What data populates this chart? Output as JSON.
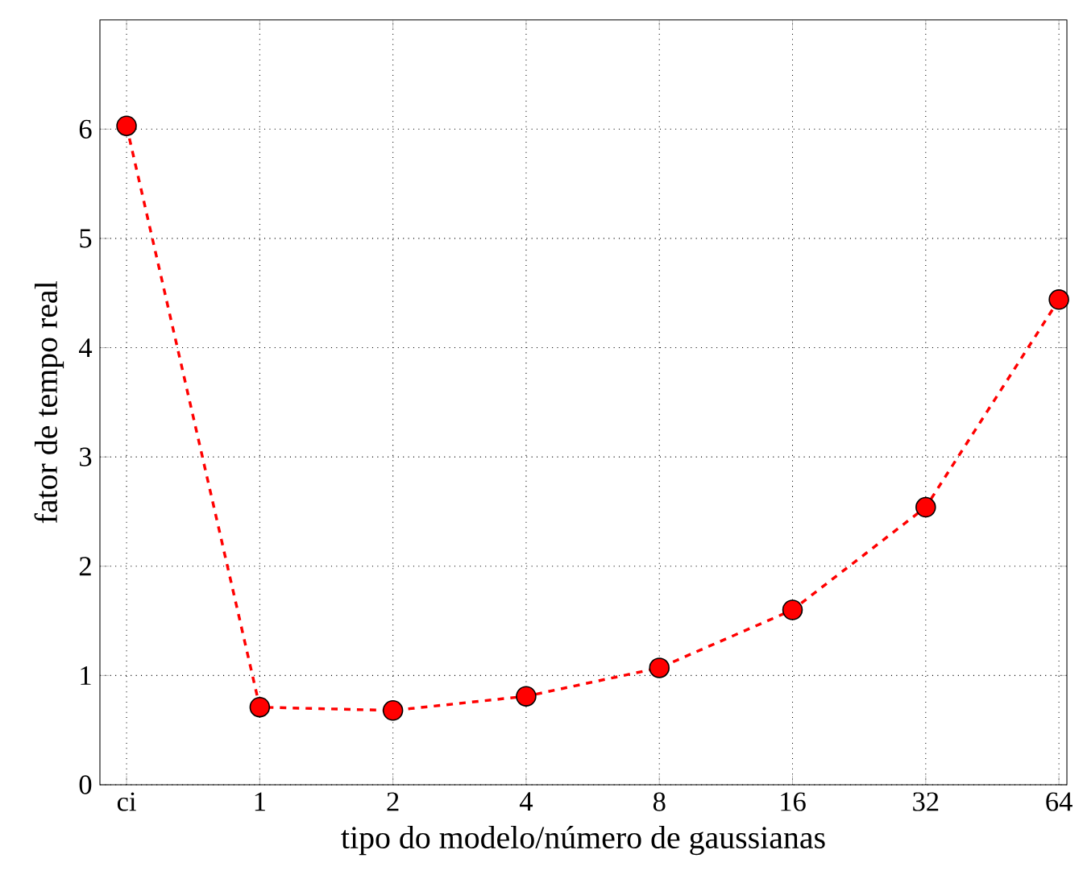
{
  "chart_data": {
    "type": "line",
    "xlabel": "tipo do modelo/número de gaussianas",
    "ylabel": "fator de tempo real",
    "categories": [
      "ci",
      "1",
      "2",
      "4",
      "8",
      "16",
      "32",
      "64"
    ],
    "series": [
      {
        "color": "#ff0000",
        "values": [
          6.03,
          0.71,
          0.68,
          0.81,
          1.07,
          1.6,
          2.54,
          4.44
        ]
      }
    ],
    "ylim": [
      0,
      7
    ],
    "yticks": [
      0,
      1,
      2,
      3,
      4,
      5,
      6
    ],
    "grid": true,
    "marker": "circle",
    "line_style": "dashed"
  }
}
